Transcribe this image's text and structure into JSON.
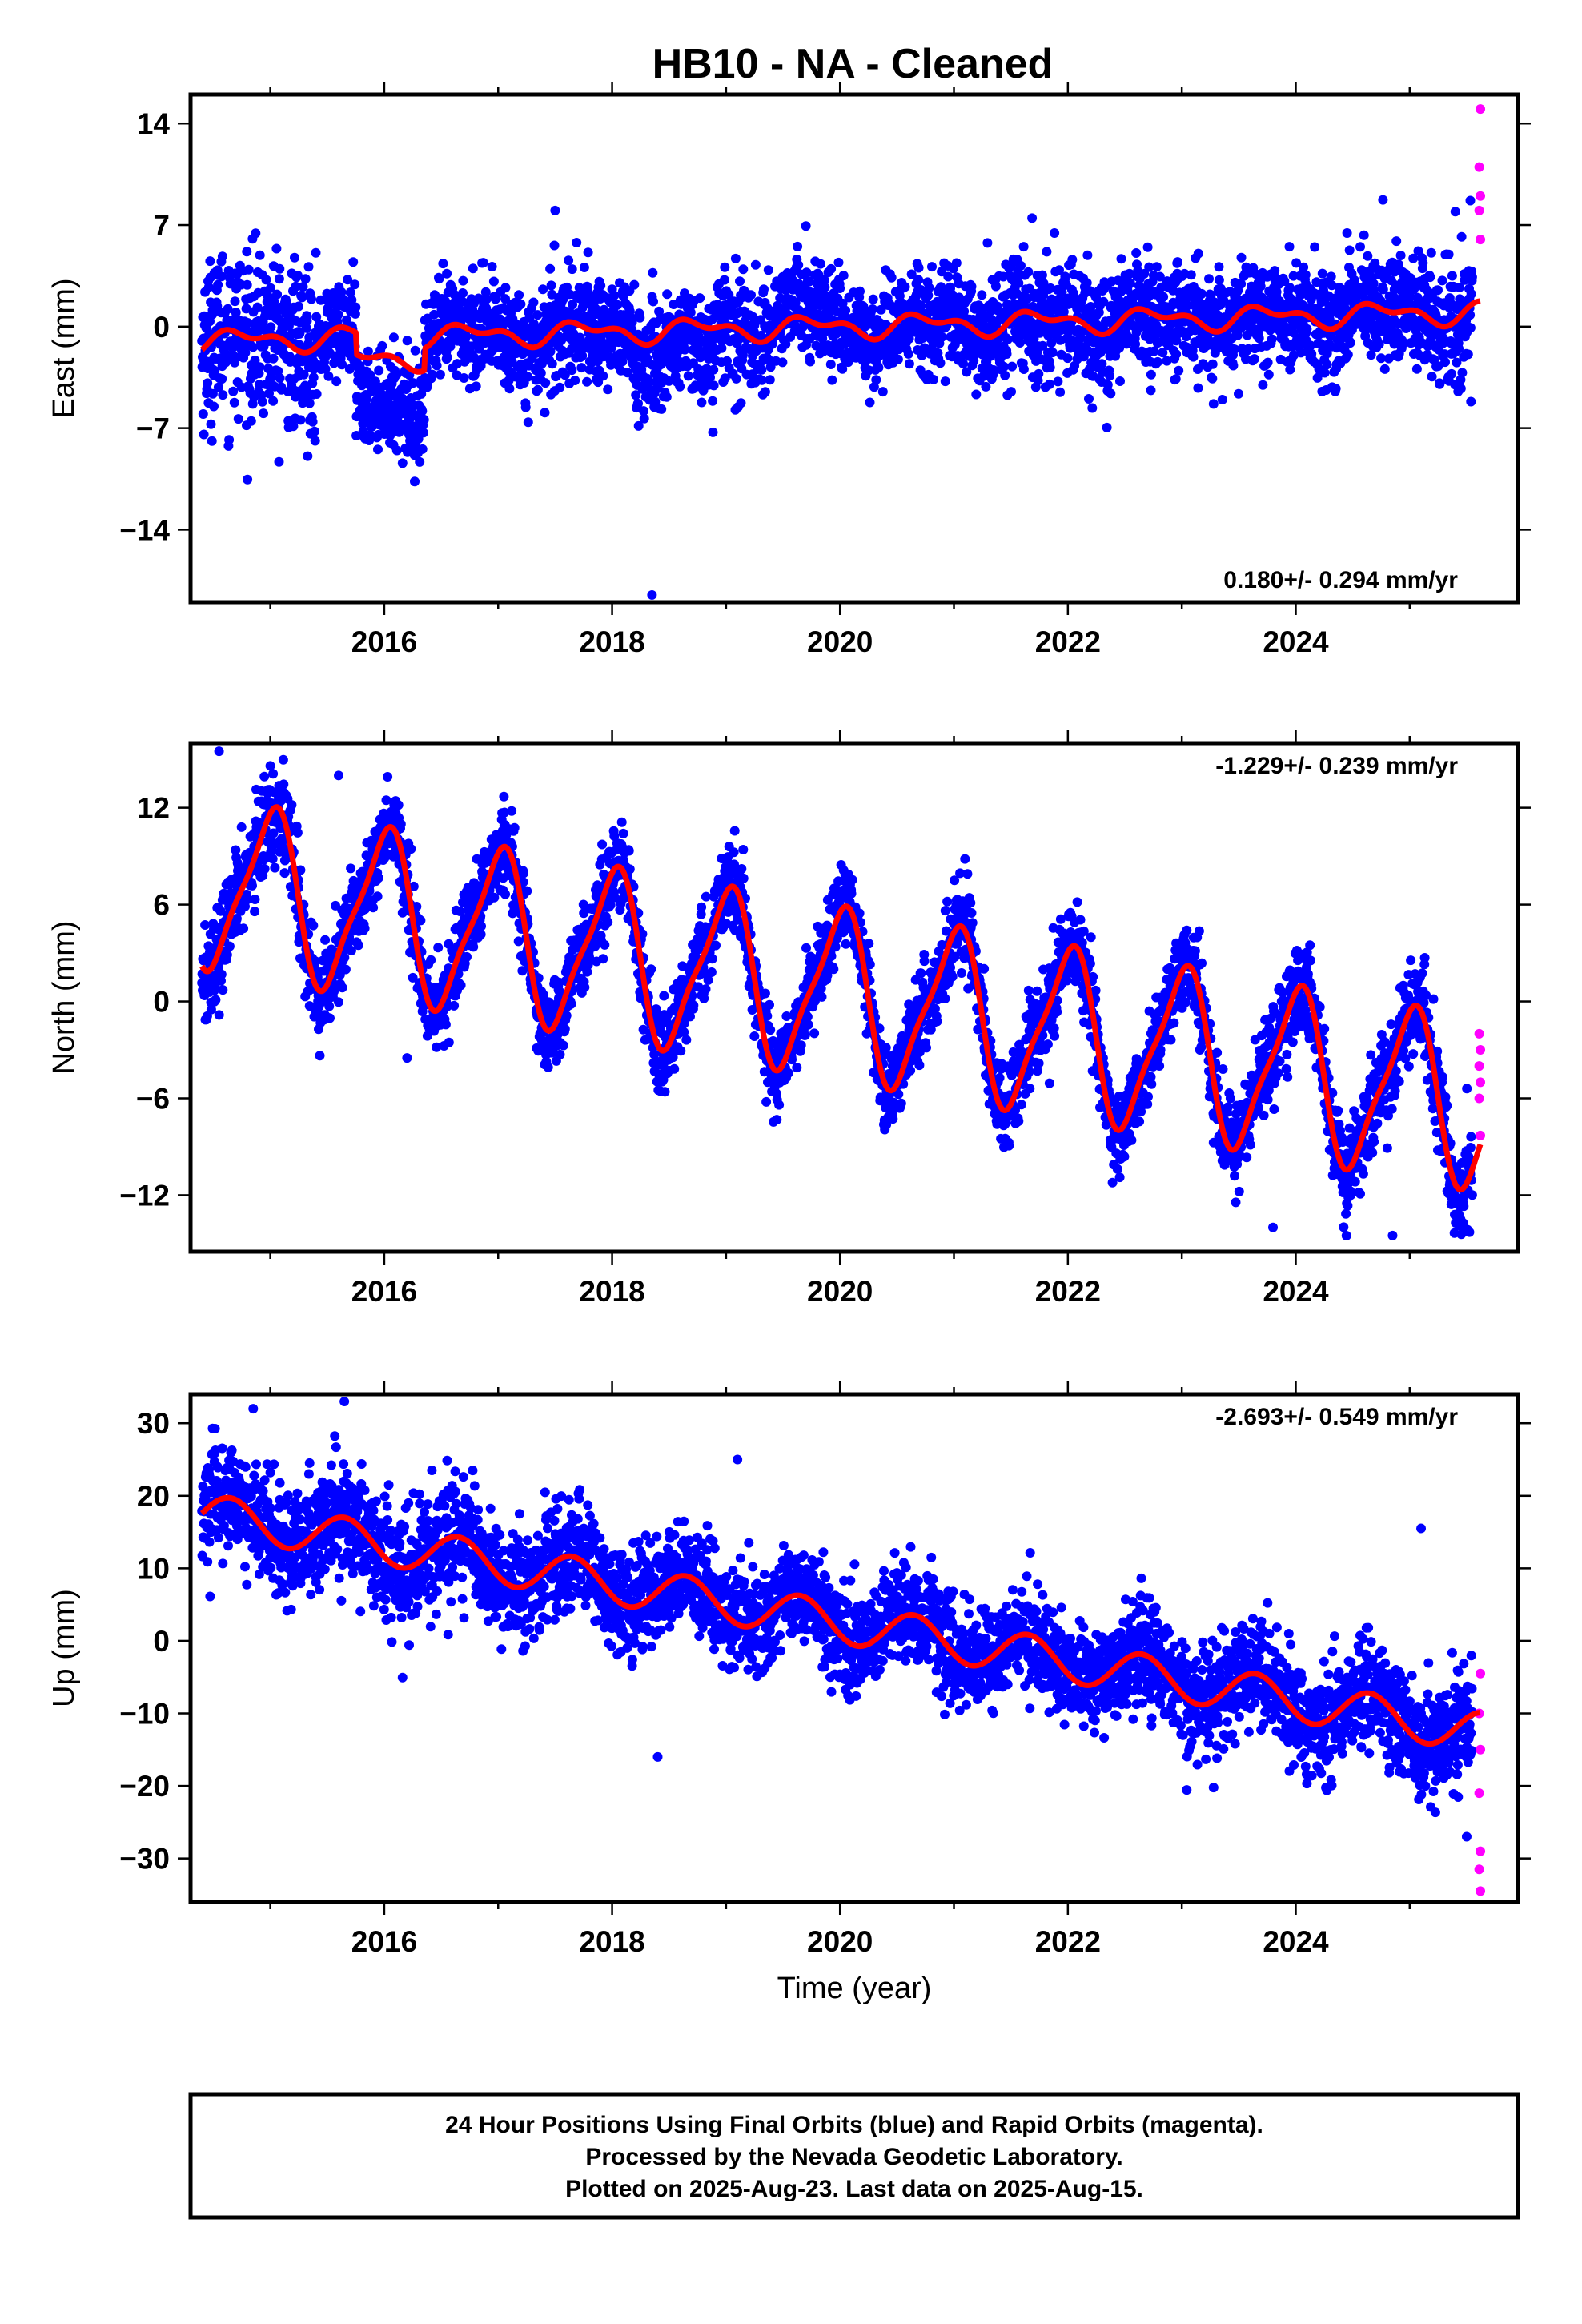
{
  "title": "HB10  - NA - Cleaned",
  "colors": {
    "final": "#0000ff",
    "rapid": "#ff00ff",
    "model": "#ff0000"
  },
  "chart_data": [
    {
      "type": "scatter",
      "panel": "east",
      "ylabel": "East (mm)",
      "xlabel": "",
      "xlim": [
        2014.3,
        2025.95
      ],
      "ylim": [
        -19,
        16
      ],
      "yticks": [
        14,
        7,
        0,
        -7,
        -14
      ],
      "xticks": [
        2016,
        2018,
        2020,
        2022,
        2024
      ],
      "rate_text": "0.180+/- 0.294 mm/yr",
      "rate_position": "bottom-right",
      "start": 2014.4,
      "end_final": 2025.55,
      "end": 2025.62,
      "trend": {
        "ref": 2020,
        "intercept": 0.0,
        "slope": 0.18
      },
      "seasonal": [
        {
          "period": 1.0,
          "amp": 0.6,
          "phase": 0.5
        },
        {
          "period": 0.5,
          "amp": 0.4,
          "phase": 0.1
        }
      ],
      "noise": 1.8,
      "noise_by_year": [
        2.8,
        1.6,
        1.8,
        2.0,
        1.8,
        1.6,
        1.8,
        2.0,
        1.8,
        1.8,
        2.0,
        2.2
      ],
      "offsets": [
        {
          "from": 2015.75,
          "to": 2016.35,
          "dy": -3.0
        },
        {
          "from": 2018.2,
          "to": 2018.9,
          "dy": -1.5
        },
        {
          "from": 2019.4,
          "to": 2019.9,
          "dy": 1.0
        }
      ],
      "model_offsets": [
        {
          "from": 2015.75,
          "to": 2016.35,
          "dy": -1.5
        }
      ],
      "outliers": [
        {
          "x": 2018.35,
          "y": -18.5
        },
        {
          "x": 2016.05,
          "y": -8
        },
        {
          "x": 2017.5,
          "y": 8
        }
      ],
      "rapid_points": [
        {
          "x": 2025.62,
          "y": 15
        },
        {
          "x": 2025.61,
          "y": 11
        },
        {
          "x": 2025.62,
          "y": 9
        },
        {
          "x": 2025.61,
          "y": 8
        },
        {
          "x": 2025.62,
          "y": 6
        }
      ],
      "model_start": 2014.4,
      "model_end": 2025.62
    },
    {
      "type": "scatter",
      "panel": "north",
      "ylabel": "North (mm)",
      "xlabel": "",
      "xlim": [
        2014.3,
        2025.95
      ],
      "ylim": [
        -15.5,
        16
      ],
      "yticks": [
        12,
        6,
        0,
        -6,
        -12
      ],
      "xticks": [
        2016,
        2018,
        2020,
        2022,
        2024
      ],
      "rate_text": "-1.229+/- 0.239 mm/yr",
      "rate_position": "top-right",
      "start": 2014.4,
      "end_final": 2025.55,
      "end": 2025.62,
      "trend": {
        "ref": 2020,
        "intercept": 0.5,
        "slope": -1.229
      },
      "seasonal": [
        {
          "period": 1.0,
          "amp": 5.0,
          "phase": 0.25
        },
        {
          "period": 0.5,
          "amp": 1.2,
          "phase": 0.0
        }
      ],
      "noise": 1.3,
      "noise_by_year": [
        1.5,
        1.3,
        1.3,
        1.3,
        1.3,
        1.3,
        1.3,
        1.3,
        1.3,
        1.5,
        1.5,
        1.5
      ],
      "offsets": [],
      "model_offsets": [],
      "outliers": [
        {
          "x": 2014.55,
          "y": 15.5
        },
        {
          "x": 2015.6,
          "y": 14
        },
        {
          "x": 2016.2,
          "y": -3.5
        },
        {
          "x": 2023.8,
          "y": -14
        },
        {
          "x": 2024.85,
          "y": -14.5
        }
      ],
      "rapid_points": [
        {
          "x": 2025.61,
          "y": -2
        },
        {
          "x": 2025.62,
          "y": -3
        },
        {
          "x": 2025.61,
          "y": -4
        },
        {
          "x": 2025.62,
          "y": -5
        },
        {
          "x": 2025.61,
          "y": -6
        },
        {
          "x": 2025.62,
          "y": -8.3
        }
      ],
      "model_start": 2014.4,
      "model_end": 2025.62
    },
    {
      "type": "scatter",
      "panel": "up",
      "ylabel": "Up (mm)",
      "xlabel": "Time (year)",
      "xlim": [
        2014.3,
        2025.95
      ],
      "ylim": [
        -36,
        34
      ],
      "yticks": [
        30,
        20,
        10,
        0,
        -10,
        -20,
        -30
      ],
      "xticks": [
        2016,
        2018,
        2020,
        2022,
        2024
      ],
      "rate_text": "-2.693+/- 0.549 mm/yr",
      "rate_position": "top-right",
      "start": 2014.4,
      "end_final": 2025.55,
      "end": 2025.62,
      "trend": {
        "ref": 2020,
        "intercept": 2.5,
        "slope": -2.693
      },
      "seasonal": [
        {
          "period": 1.0,
          "amp": 2.8,
          "phase": 0.6
        }
      ],
      "noise": 3.5,
      "noise_by_year": [
        4.0,
        3.8,
        3.8,
        3.6,
        3.5,
        3.5,
        3.5,
        3.5,
        3.5,
        3.5,
        3.5,
        4.0
      ],
      "offsets": [],
      "model_offsets": [],
      "outliers": [
        {
          "x": 2015.65,
          "y": 33
        },
        {
          "x": 2014.85,
          "y": 32
        },
        {
          "x": 2019.1,
          "y": 25
        },
        {
          "x": 2018.4,
          "y": -16
        },
        {
          "x": 2025.1,
          "y": 15.5
        },
        {
          "x": 2025.5,
          "y": -27
        }
      ],
      "rapid_points": [
        {
          "x": 2025.62,
          "y": -4.5
        },
        {
          "x": 2025.61,
          "y": -10
        },
        {
          "x": 2025.62,
          "y": -15
        },
        {
          "x": 2025.61,
          "y": -21
        },
        {
          "x": 2025.62,
          "y": -29
        },
        {
          "x": 2025.61,
          "y": -31.5
        },
        {
          "x": 2025.62,
          "y": -34.5
        }
      ],
      "model_start": 2014.4,
      "model_end": 2025.62
    }
  ],
  "footer": {
    "line1": "24 Hour Positions Using Final Orbits (blue) and Rapid Orbits (magenta).",
    "line2": "Processed by the Nevada Geodetic Laboratory.",
    "line3": "Plotted on 2025-Aug-23. Last data on 2025-Aug-15."
  }
}
